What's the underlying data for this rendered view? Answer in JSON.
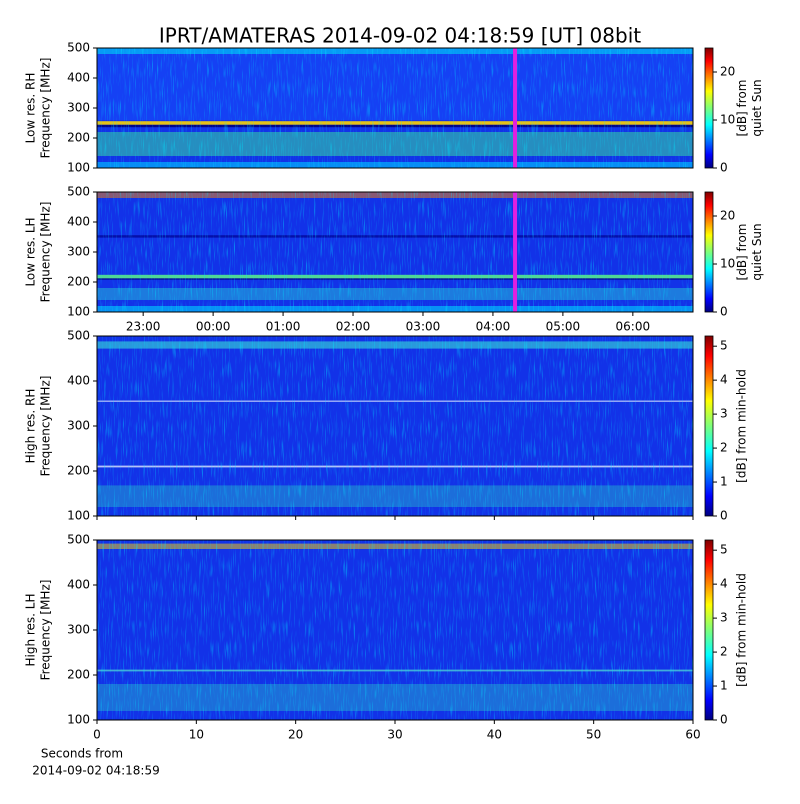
{
  "title": "IPRT/AMATERAS 2014-09-02 04:18:59 [UT]   08bit",
  "chart_data": [
    {
      "type": "heatmap",
      "ylabel": [
        "Low res. RH",
        "Frequency [MHz]"
      ],
      "ylim": [
        100,
        500
      ],
      "yticks": [
        100,
        200,
        300,
        400,
        500
      ],
      "xlim": [
        22.34,
        30.86
      ],
      "marker": 28.316,
      "marker_color": "#e020e0",
      "colormap": "jet",
      "clim": [
        0,
        25
      ],
      "cticks": [
        0,
        10,
        20
      ],
      "clabel": [
        "[dB] from",
        "quiet Sun"
      ]
    },
    {
      "type": "heatmap",
      "ylabel": [
        "Low res. LH",
        "Frequency [MHz]"
      ],
      "ylim": [
        100,
        500
      ],
      "yticks": [
        100,
        200,
        300,
        400,
        500
      ],
      "xlim": [
        22.34,
        30.86
      ],
      "marker": 28.316,
      "marker_color": "#e020e0",
      "xticks": [
        {
          "value": 23,
          "label": "23:00"
        },
        {
          "value": 24,
          "label": "00:00"
        },
        {
          "value": 25,
          "label": "01:00"
        },
        {
          "value": 26,
          "label": "02:00"
        },
        {
          "value": 27,
          "label": "03:00"
        },
        {
          "value": 28,
          "label": "04:00"
        },
        {
          "value": 29,
          "label": "05:00"
        },
        {
          "value": 30,
          "label": "06:00"
        }
      ],
      "colormap": "jet",
      "clim": [
        0,
        25
      ],
      "cticks": [
        0,
        10,
        20
      ],
      "clabel": [
        "[dB] from",
        "quiet Sun"
      ]
    },
    {
      "type": "heatmap",
      "ylabel": [
        "High res. RH",
        "Frequency [MHz]"
      ],
      "ylim": [
        100,
        500
      ],
      "yticks": [
        100,
        200,
        300,
        400,
        500
      ],
      "xlim": [
        0,
        60
      ],
      "xticks": [
        0,
        10,
        20,
        30,
        40,
        50,
        60
      ],
      "xticklabels": false,
      "colormap": "jet",
      "clim": [
        0,
        5.3
      ],
      "cticks": [
        0,
        1,
        2,
        3,
        4,
        5
      ],
      "clabel": [
        "[dB] from min-hold"
      ]
    },
    {
      "type": "heatmap",
      "ylabel": [
        "High res. LH",
        "Frequency [MHz]"
      ],
      "ylim": [
        100,
        500
      ],
      "yticks": [
        100,
        200,
        300,
        400,
        500
      ],
      "xlim": [
        0,
        60
      ],
      "xticks": [
        0,
        10,
        20,
        30,
        40,
        50,
        60
      ],
      "xticklabels": true,
      "xlabel": [
        "Seconds from",
        "2014-09-02 04:18:59"
      ],
      "colormap": "jet",
      "clim": [
        0,
        5.3
      ],
      "cticks": [
        0,
        1,
        2,
        3,
        4,
        5
      ],
      "clabel": [
        "[dB] from min-hold"
      ]
    }
  ]
}
